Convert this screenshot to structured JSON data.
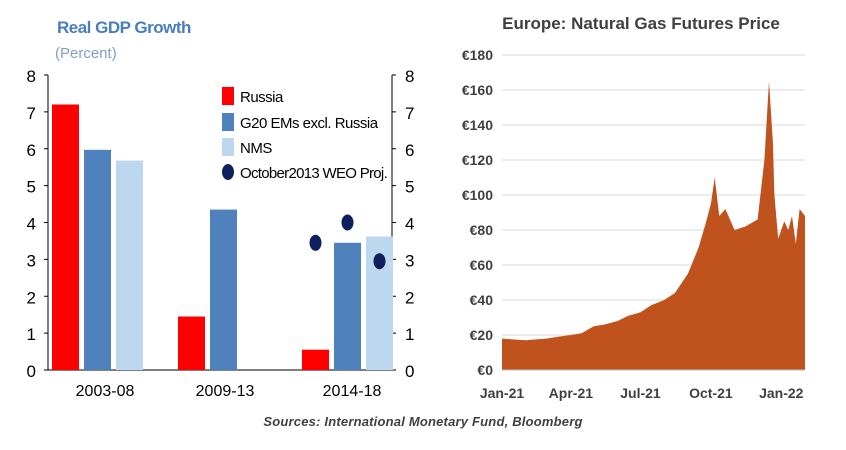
{
  "source_text": "Sources: International Monetary Fund, Bloomberg",
  "chart_data": [
    {
      "type": "bar",
      "title": "Real GDP Growth",
      "subtitle": "(Percent)",
      "categories": [
        "2003-08",
        "2009-13",
        "2014-18"
      ],
      "ylim": [
        0,
        8
      ],
      "yticks": [
        "0",
        "1",
        "2",
        "3",
        "4",
        "5",
        "6",
        "7",
        "8"
      ],
      "grid": false,
      "legend_position": "top-right",
      "series": [
        {
          "name": "Russia",
          "color": "#ff0000",
          "values": [
            7.2,
            1.45,
            0.55
          ]
        },
        {
          "name": "G20 EMs excl. Russia",
          "color": "#4f81bd",
          "values": [
            5.97,
            4.35,
            3.45
          ]
        },
        {
          "name": "NMS",
          "color": "#bdd7ee",
          "values": [
            5.68,
            null,
            3.62
          ]
        }
      ],
      "projection": {
        "name": "October2013 WEO Proj.",
        "color": "#0f1f5c",
        "values": [
          null,
          null,
          [
            3.45,
            4.0,
            2.95
          ]
        ]
      }
    },
    {
      "type": "area",
      "title": "Europe:  Natural Gas Futures Price",
      "color": "#c0521e",
      "ylim": [
        0,
        180
      ],
      "yticks": [
        "€0",
        "€20",
        "€40",
        "€60",
        "€80",
        "€100",
        "€120",
        "€140",
        "€160",
        "€180"
      ],
      "xticks": [
        "Jan-21",
        "Apr-21",
        "Jul-21",
        "Oct-21",
        "Jan-22"
      ],
      "grid": true,
      "x": [
        "2021-01-01",
        "2021-01-15",
        "2021-02-01",
        "2021-02-15",
        "2021-03-01",
        "2021-03-15",
        "2021-04-01",
        "2021-04-15",
        "2021-05-01",
        "2021-05-15",
        "2021-06-01",
        "2021-06-15",
        "2021-07-01",
        "2021-07-15",
        "2021-08-01",
        "2021-08-15",
        "2021-09-01",
        "2021-09-15",
        "2021-09-25",
        "2021-10-01",
        "2021-10-06",
        "2021-10-12",
        "2021-10-20",
        "2021-11-01",
        "2021-11-15",
        "2021-12-01",
        "2021-12-10",
        "2021-12-16",
        "2021-12-21",
        "2021-12-23",
        "2021-12-28",
        "2022-01-05",
        "2022-01-10",
        "2022-01-15",
        "2022-01-20",
        "2022-01-25",
        "2022-02-01"
      ],
      "y": [
        18,
        17.5,
        17,
        17.5,
        18,
        19,
        20,
        21,
        25,
        26,
        28,
        31,
        33,
        37,
        40,
        44,
        55,
        70,
        85,
        95,
        110,
        88,
        92,
        80,
        82,
        86,
        120,
        165,
        130,
        100,
        75,
        85,
        80,
        88,
        72,
        92,
        88
      ]
    }
  ]
}
